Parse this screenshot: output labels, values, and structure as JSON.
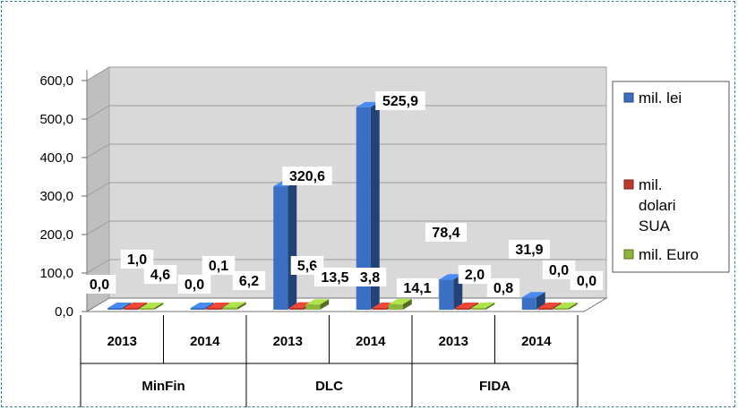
{
  "chart_data": {
    "type": "bar",
    "groups": [
      "MinFin",
      "DLC",
      "FIDA"
    ],
    "years": [
      "2013",
      "2014"
    ],
    "categories": [
      "MinFin 2013",
      "MinFin 2014",
      "DLC 2013",
      "DLC 2014",
      "FIDA 2013",
      "FIDA 2014"
    ],
    "series": [
      {
        "name": "mil. lei",
        "color": "#3a6fc4",
        "values": [
          0.0,
          0.0,
          320.6,
          525.9,
          78.4,
          31.9
        ],
        "labels": [
          "0,0",
          "0,0",
          "320,6",
          "525,9",
          "78,4",
          "31,9"
        ]
      },
      {
        "name": "mil. dolari SUA",
        "color": "#c0392b",
        "values": [
          1.0,
          0.1,
          5.6,
          3.8,
          2.0,
          0.0
        ],
        "labels": [
          "1,0",
          "0,1",
          "5,6",
          "3,8",
          "2,0",
          "0,0"
        ]
      },
      {
        "name": "mil. Euro",
        "color": "#8db63c",
        "values": [
          4.6,
          6.2,
          13.5,
          14.1,
          0.8,
          0.0
        ],
        "labels": [
          "4,6",
          "6,2",
          "13,5",
          "14,1",
          "0,8",
          "0,0"
        ]
      }
    ],
    "ylim": [
      0,
      600
    ],
    "yticks": [
      "0,0",
      "100,0",
      "200,0",
      "300,0",
      "400,0",
      "500,0",
      "600,0"
    ],
    "legend_position": "right",
    "grid": true
  }
}
